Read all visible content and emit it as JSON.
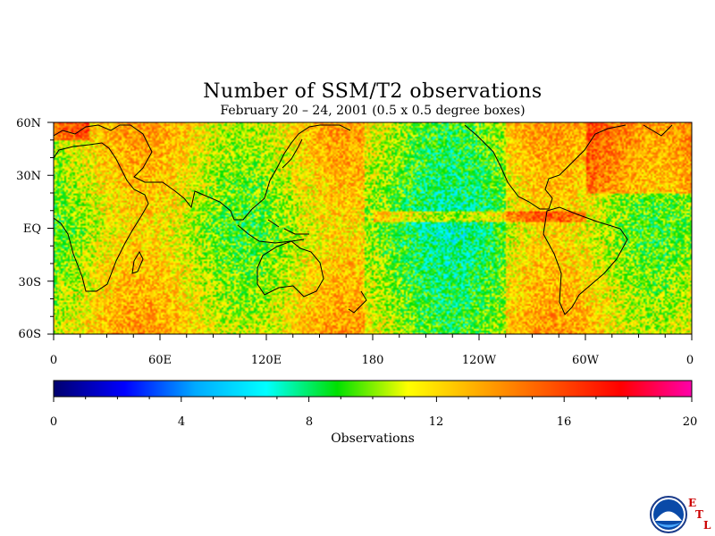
{
  "title": "Number of SSM/T2 observations",
  "subtitle": "February 20 – 24, 2001 (0.5 x 0.5 degree boxes)",
  "map": {
    "lat_labels": [
      "60N",
      "30N",
      "EQ",
      "30S",
      "60S"
    ],
    "lon_labels": [
      "0",
      "60E",
      "120E",
      "180",
      "120W",
      "60W",
      "0"
    ],
    "coastline_color": "#000000"
  },
  "colorbar": {
    "label": "Observations",
    "ticks": [
      "0",
      "4",
      "8",
      "12",
      "16",
      "20"
    ],
    "range": [
      0,
      20
    ],
    "colors": [
      "#00006e",
      "#0000ff",
      "#00aaff",
      "#00ffff",
      "#00e000",
      "#ffff00",
      "#ffaa00",
      "#ff5500",
      "#ff0000",
      "#ff00aa"
    ]
  },
  "logo": {
    "name": "NOAA",
    "lab_letters": [
      "E",
      "T",
      "L"
    ]
  },
  "chart_data": {
    "type": "heatmap",
    "title": "Number of SSM/T2 observations",
    "subtitle": "February 20 – 24, 2001 (0.5 x 0.5 degree boxes)",
    "x_range": [
      0,
      360
    ],
    "y_range": [
      -60,
      60
    ],
    "value_range": [
      0,
      20
    ],
    "colorbar_label": "Observations"
  }
}
